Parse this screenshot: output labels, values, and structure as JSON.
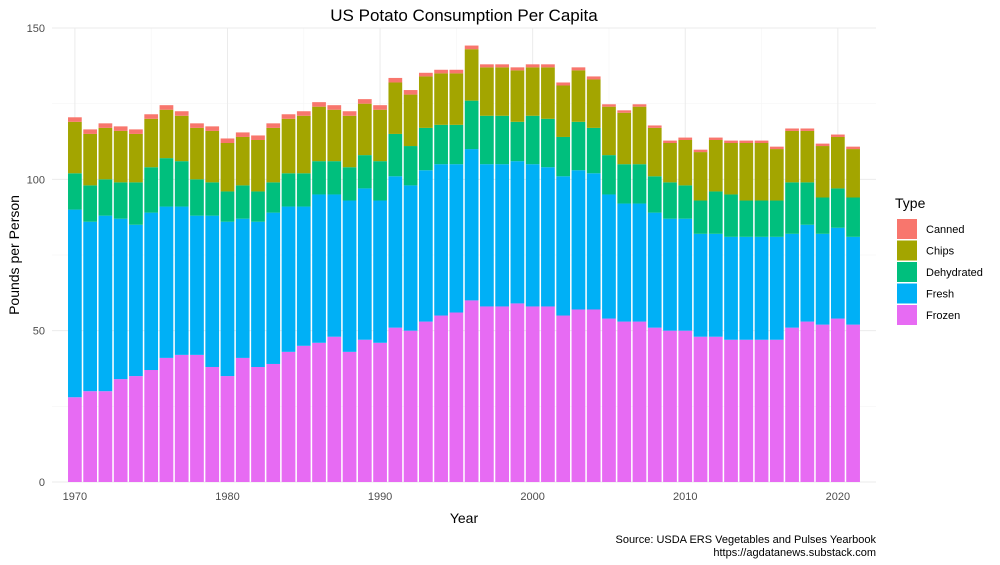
{
  "chart_data": {
    "type": "bar",
    "stacked": true,
    "title": "US Potato Consumption Per Capita",
    "xlabel": "Year",
    "ylabel": "Pounds per Person",
    "x_ticks": [
      1970,
      1980,
      1990,
      2000,
      2010,
      2020
    ],
    "y_ticks": [
      0,
      50,
      100,
      150
    ],
    "ylim": [
      0,
      150
    ],
    "xlim": [
      1968.5,
      2022.5
    ],
    "grid": true,
    "legend": {
      "title": "Type",
      "placement": "right"
    },
    "caption": [
      "Source: USDA ERS Vegetables and Pulses Yearbook",
      "https://agdatanews.substack.com"
    ],
    "categories": [
      1970,
      1971,
      1972,
      1973,
      1974,
      1975,
      1976,
      1977,
      1978,
      1979,
      1980,
      1981,
      1982,
      1983,
      1984,
      1985,
      1986,
      1987,
      1988,
      1989,
      1990,
      1991,
      1992,
      1993,
      1994,
      1995,
      1996,
      1997,
      1998,
      1999,
      2000,
      2001,
      2002,
      2003,
      2004,
      2005,
      2006,
      2007,
      2008,
      2009,
      2010,
      2011,
      2012,
      2013,
      2014,
      2015,
      2016,
      2017,
      2018,
      2019,
      2020,
      2021
    ],
    "series": [
      {
        "name": "Frozen",
        "color": "#E76BF3",
        "values": [
          28,
          30,
          30,
          34,
          35,
          37,
          41,
          42,
          42,
          38,
          35,
          41,
          38,
          39,
          43,
          45,
          46,
          48,
          43,
          47,
          46,
          51,
          50,
          53,
          55,
          56,
          60,
          58,
          58,
          59,
          58,
          58,
          55,
          57,
          57,
          54,
          53,
          53,
          51,
          50,
          50,
          48,
          48,
          47,
          47,
          47,
          47,
          51,
          53,
          52,
          54,
          52
        ]
      },
      {
        "name": "Fresh",
        "color": "#00B0F6",
        "values": [
          62,
          56,
          58,
          53,
          50,
          52,
          50,
          49,
          46,
          50,
          51,
          46,
          48,
          50,
          48,
          46,
          49,
          47,
          50,
          50,
          47,
          50,
          48,
          50,
          50,
          49,
          50,
          47,
          47,
          47,
          47,
          46,
          46,
          46,
          45,
          41,
          39,
          39,
          38,
          37,
          37,
          34,
          34,
          34,
          34,
          34,
          34,
          31,
          32,
          30,
          30,
          29
        ]
      },
      {
        "name": "Dehydrated",
        "color": "#00BF7D",
        "values": [
          12,
          12,
          12,
          12,
          14,
          15,
          16,
          15,
          12,
          11,
          10,
          11,
          10,
          10,
          11,
          11,
          11,
          11,
          11,
          11,
          13,
          14,
          13,
          14,
          13,
          13,
          16,
          16,
          16,
          13,
          16,
          16,
          13,
          16,
          15,
          13,
          13,
          13,
          12,
          12,
          11,
          11,
          14,
          14,
          12,
          12,
          12,
          17,
          14,
          12,
          13,
          13
        ]
      },
      {
        "name": "Chips",
        "color": "#A3A500",
        "values": [
          17,
          17,
          17,
          17,
          16,
          16,
          16,
          15,
          17,
          17,
          16,
          16,
          17,
          18,
          18,
          19,
          18,
          17,
          17,
          17,
          17,
          17,
          17,
          17,
          17,
          17,
          17,
          16,
          16,
          17,
          16,
          17,
          17,
          17,
          16,
          16,
          17,
          19,
          16,
          13,
          15,
          16,
          17,
          17,
          19,
          19,
          17,
          17,
          17,
          17,
          17,
          16
        ]
      },
      {
        "name": "Canned",
        "color": "#F8766D",
        "values": [
          1.5,
          1.5,
          1.5,
          1.5,
          1.5,
          1.5,
          1.5,
          1.5,
          1.5,
          1.5,
          1.5,
          1.5,
          1.5,
          1.5,
          1.5,
          1.5,
          1.5,
          1.5,
          1.5,
          1.5,
          1.5,
          1.5,
          1.5,
          1.2,
          1.2,
          1.2,
          1.2,
          1.0,
          1.0,
          1.0,
          1.0,
          1.0,
          1.0,
          1.0,
          1.0,
          0.8,
          0.8,
          0.8,
          0.8,
          0.8,
          0.8,
          0.8,
          0.8,
          0.8,
          0.8,
          0.8,
          0.8,
          0.8,
          0.8,
          0.8,
          0.8,
          0.8
        ]
      }
    ],
    "legend_order": [
      "Canned",
      "Chips",
      "Dehydrated",
      "Fresh",
      "Frozen"
    ]
  }
}
